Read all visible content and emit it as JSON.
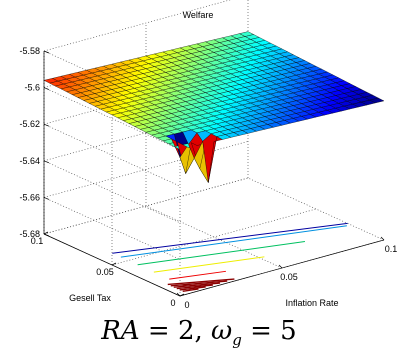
{
  "chart_data": {
    "type": "surface3d",
    "title": "Welfare",
    "xlabel": "Inflation Rate",
    "ylabel": "Gesell Tax",
    "x_ticks": [
      "0",
      "0.05",
      "0.1"
    ],
    "y_ticks": [
      "0",
      "0.05",
      "0.1"
    ],
    "z_ticks": [
      "-5.58",
      "-5.6",
      "-5.62",
      "-5.64",
      "-5.66",
      "-5.68"
    ],
    "xlim": [
      0,
      0.1
    ],
    "ylim": [
      0,
      0.1
    ],
    "zlim": [
      -5.68,
      -5.58
    ],
    "surface_level": -5.6,
    "dips": [
      {
        "inflation": 0.01,
        "gesell_tax": 0.01,
        "min_welfare": -5.645
      },
      {
        "inflation": 0.015,
        "gesell_tax": 0.005,
        "min_welfare": -5.645
      }
    ],
    "contours": [
      {
        "level": -5.6,
        "color": "#8b0000"
      },
      {
        "level": -5.61,
        "color": "#ee0000"
      },
      {
        "level": -5.62,
        "color": "#eeee00"
      },
      {
        "level": -5.63,
        "color": "#00c060"
      },
      {
        "level": -5.64,
        "color": "#0090e0"
      },
      {
        "level": -5.645,
        "color": "#0000a0"
      }
    ],
    "colormap": "jet",
    "grid": true
  },
  "caption": {
    "lhs": "RA",
    "eq": " = ",
    "ra_value": "2",
    "sep": ", ",
    "omega": "ω",
    "omega_sub": "g",
    "omega_value": "5"
  }
}
